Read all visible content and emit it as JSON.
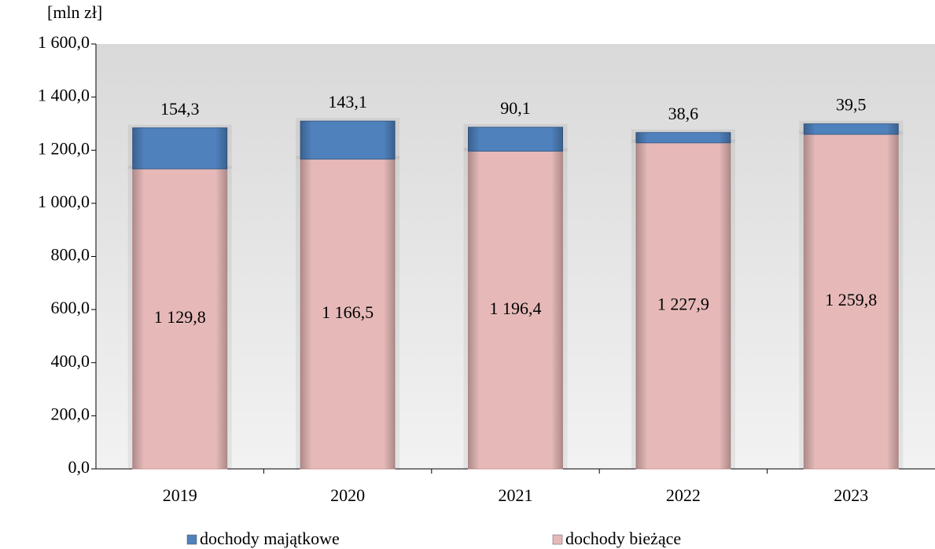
{
  "chart_data": {
    "type": "stacked_bar",
    "y_axis_label": "[mln zł]",
    "categories": [
      "2019",
      "2020",
      "2021",
      "2022",
      "2023"
    ],
    "series": [
      {
        "name": "dochody majątkowe",
        "color": "#4f81bd",
        "values": [
          154.3,
          143.1,
          90.1,
          38.6,
          39.5
        ],
        "value_labels": [
          "154,3",
          "143,1",
          "90,1",
          "38,6",
          "39,5"
        ]
      },
      {
        "name": "dochody bieżące",
        "color": "#e6b9b8",
        "values": [
          1129.8,
          1166.5,
          1196.4,
          1227.9,
          1259.8
        ],
        "value_labels": [
          "1 129,8",
          "1 166,5",
          "1 196,4",
          "1 227,9",
          "1 259,8"
        ]
      }
    ],
    "ylim": [
      0,
      1600
    ],
    "yticks": [
      {
        "value": 0,
        "label": "0,0"
      },
      {
        "value": 200,
        "label": "200,0"
      },
      {
        "value": 400,
        "label": "400,0"
      },
      {
        "value": 600,
        "label": "600,0"
      },
      {
        "value": 800,
        "label": "800,0"
      },
      {
        "value": 1000,
        "label": "1 000,0"
      },
      {
        "value": 1200,
        "label": "1 200,0"
      },
      {
        "value": 1400,
        "label": "1 400,0"
      },
      {
        "value": 1600,
        "label": "1 600,0"
      }
    ],
    "legend": "bottom"
  }
}
